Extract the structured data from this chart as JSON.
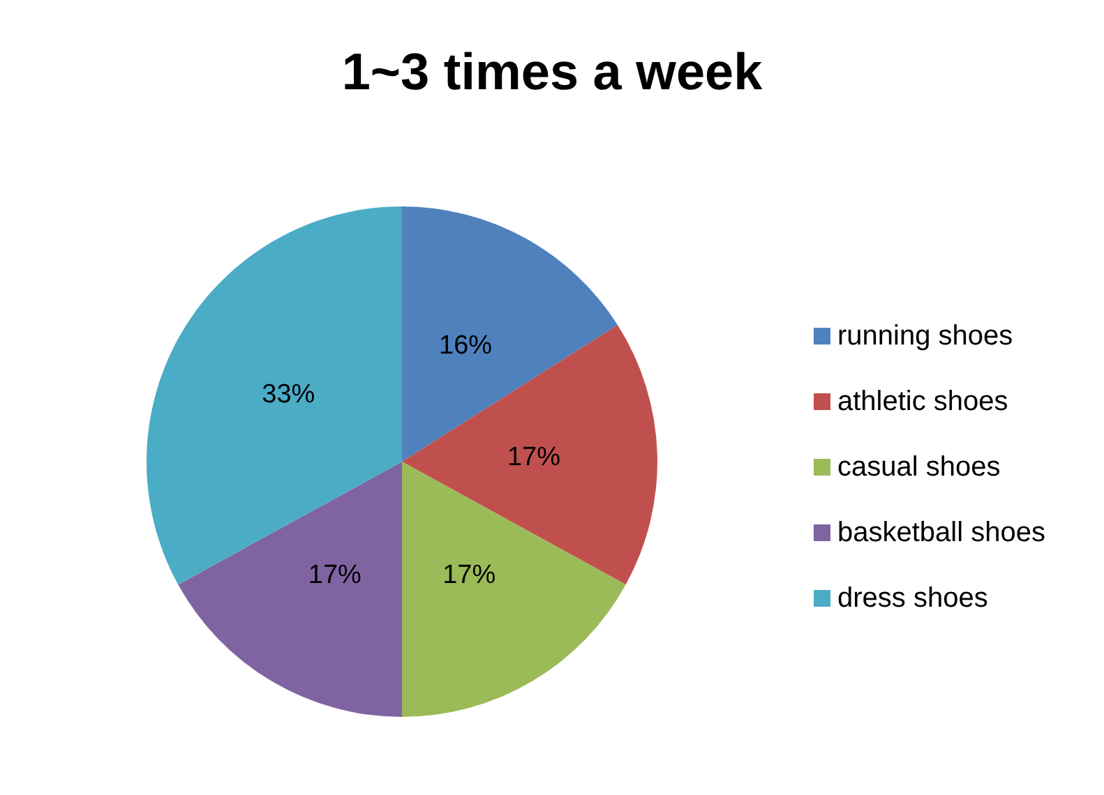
{
  "chart_data": {
    "type": "pie",
    "title": "1~3 times a week",
    "categories": [
      "running shoes",
      "athletic shoes",
      "casual shoes",
      "basketball shoes",
      "dress shoes"
    ],
    "values": [
      16,
      17,
      17,
      17,
      33
    ],
    "colors": [
      "#4f81bd",
      "#c0504d",
      "#9bbb59",
      "#8064a2",
      "#4bacc6"
    ],
    "value_labels": [
      "16%",
      "17%",
      "17%",
      "17%",
      "33%"
    ],
    "legend": "right"
  }
}
